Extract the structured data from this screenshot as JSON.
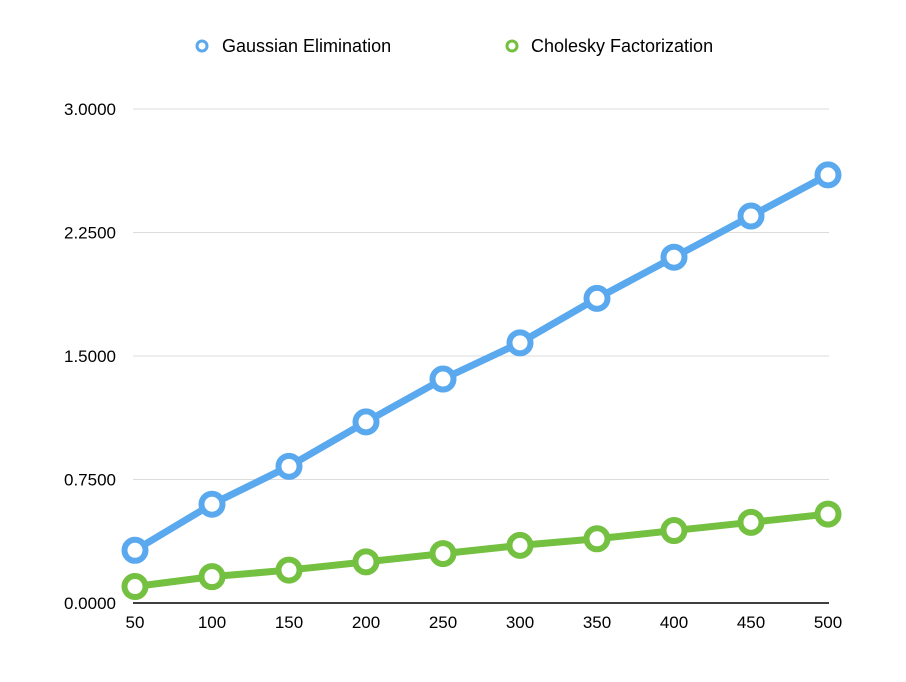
{
  "chart_data": {
    "type": "line",
    "title": "",
    "xlabel": "",
    "ylabel": "",
    "x": [
      50,
      100,
      150,
      200,
      250,
      300,
      350,
      400,
      450,
      500
    ],
    "ylim": [
      0,
      3
    ],
    "yticks": [
      "0.0000",
      "0.7500",
      "1.5000",
      "2.2500",
      "3.0000"
    ],
    "ytick_values": [
      0,
      0.75,
      1.5,
      2.25,
      3
    ],
    "grid": true,
    "legend_position": "top",
    "series": [
      {
        "name": "Gaussian Elimination",
        "color": "#5aa9ef",
        "values": [
          0.32,
          0.6,
          0.83,
          1.1,
          1.36,
          1.58,
          1.85,
          2.1,
          2.35,
          2.6
        ]
      },
      {
        "name": "Cholesky Factorization",
        "color": "#74c041",
        "values": [
          0.1,
          0.16,
          0.2,
          0.25,
          0.3,
          0.35,
          0.39,
          0.44,
          0.49,
          0.54
        ]
      }
    ]
  }
}
